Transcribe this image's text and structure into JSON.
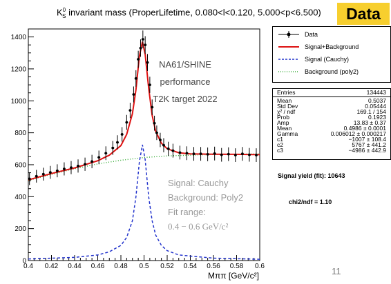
{
  "title": "K⁰S invariant mass (ProperLifetime, 0.080<l<0.120, 5.000<p<6.500)",
  "title_parts": {
    "main": "K",
    "sup": "0",
    "sub": "S",
    "rest": " invariant mass (ProperLifetime, 0.080<l<0.120, 5.000<p<6.500)"
  },
  "badge": {
    "label": "Data",
    "color": "#f7cf2e"
  },
  "annotations": {
    "experiment": "NA61/SHINE",
    "status": "performance",
    "target": "T2K target 2022",
    "fit_signal": "Signal: Cauchy",
    "fit_background": "Background: Poly2",
    "fit_range_label": "Fit range:",
    "fit_range_value": "0.4 − 0.6 GeV/c²"
  },
  "legend": [
    {
      "label": "Data",
      "style": "data"
    },
    {
      "label": "Signal+Background",
      "style": "solid",
      "color": "#dd1111"
    },
    {
      "label": "Signal (Cauchy)",
      "style": "dashed",
      "color": "#2233cc"
    },
    {
      "label": "Background (poly2)",
      "style": "dotted",
      "color": "#33aa33"
    }
  ],
  "stats": [
    {
      "key": "Entries",
      "value": "134443"
    },
    {
      "key": "Mean",
      "value": "0.5037"
    },
    {
      "key": "Std Dev",
      "value": "0.05444"
    },
    {
      "key": "χ² / ndf",
      "value": "169.1 / 154"
    },
    {
      "key": "Prob",
      "value": "0.1923"
    },
    {
      "key": "Amp",
      "value": "13.83 ± 0.37"
    },
    {
      "key": "Mean",
      "value": "0.4986 ± 0.0001"
    },
    {
      "key": "Gamma",
      "value": "0.006012 ± 0.000217"
    },
    {
      "key": "c1",
      "value": "−1007 ± 108.4"
    },
    {
      "key": "c2",
      "value": "5767 ± 441.2"
    },
    {
      "key": "c3",
      "value": "−4986 ± 442.9"
    }
  ],
  "yield_text": "Signal yield (fit): 10643",
  "chi_text": "chi2/ndf = 1.10",
  "page_number": "11",
  "chart_data": {
    "type": "scatter",
    "xlabel": "Mππ [GeV/c²]",
    "ylabel": "",
    "xlim": [
      0.4,
      0.6
    ],
    "ylim": [
      0,
      1450
    ],
    "xticks": [
      "0.4",
      "0.42",
      "0.44",
      "0.46",
      "0.48",
      "0.5",
      "0.52",
      "0.54",
      "0.56",
      "0.58",
      "0.6"
    ],
    "yticks": [
      "0",
      "200",
      "400",
      "600",
      "800",
      "1000",
      "1200",
      "1400"
    ],
    "series": [
      {
        "name": "Data",
        "color": "#000000",
        "x": [
          0.401,
          0.407,
          0.413,
          0.419,
          0.425,
          0.431,
          0.437,
          0.443,
          0.449,
          0.455,
          0.461,
          0.467,
          0.473,
          0.477,
          0.481,
          0.485,
          0.488,
          0.491,
          0.493,
          0.495,
          0.497,
          0.499,
          0.501,
          0.503,
          0.505,
          0.507,
          0.509,
          0.511,
          0.514,
          0.517,
          0.521,
          0.525,
          0.531,
          0.537,
          0.543,
          0.549,
          0.555,
          0.561,
          0.567,
          0.573,
          0.579,
          0.585,
          0.591,
          0.597
        ],
        "y": [
          512,
          528,
          541,
          552,
          562,
          574,
          582,
          592,
          603,
          620,
          646,
          672,
          705,
          740,
          790,
          865,
          940,
          1040,
          1140,
          1260,
          1330,
          1385,
          1350,
          1240,
          1100,
          960,
          860,
          800,
          755,
          722,
          700,
          688,
          676,
          672,
          668,
          668,
          665,
          670,
          662,
          666,
          660,
          668,
          662,
          660
        ]
      },
      {
        "name": "Signal+Background",
        "color": "#dd1111",
        "x": [
          0.4,
          0.42,
          0.44,
          0.46,
          0.47,
          0.48,
          0.485,
          0.49,
          0.493,
          0.496,
          0.4986,
          0.501,
          0.504,
          0.507,
          0.51,
          0.515,
          0.52,
          0.53,
          0.54,
          0.56,
          0.58,
          0.6
        ],
        "y": [
          505,
          545,
          580,
          625,
          660,
          720,
          790,
          920,
          1070,
          1280,
          1370,
          1290,
          1080,
          910,
          810,
          735,
          700,
          675,
          668,
          666,
          665,
          663
        ]
      },
      {
        "name": "Signal (Cauchy)",
        "color": "#2233cc",
        "x": [
          0.4,
          0.44,
          0.46,
          0.47,
          0.48,
          0.485,
          0.49,
          0.493,
          0.496,
          0.4986,
          0.501,
          0.504,
          0.507,
          0.51,
          0.515,
          0.52,
          0.53,
          0.56,
          0.6
        ],
        "y": [
          10,
          20,
          35,
          55,
          95,
          145,
          250,
          400,
          620,
          725,
          630,
          400,
          250,
          160,
          95,
          62,
          35,
          15,
          8
        ]
      },
      {
        "name": "Background (poly2)",
        "color": "#33aa33",
        "x": [
          0.4,
          0.42,
          0.44,
          0.46,
          0.48,
          0.5,
          0.52,
          0.54,
          0.56,
          0.58,
          0.6
        ],
        "y": [
          502,
          540,
          575,
          605,
          628,
          645,
          655,
          660,
          664,
          666,
          668
        ]
      }
    ],
    "grid": false,
    "legend_position": "right"
  }
}
